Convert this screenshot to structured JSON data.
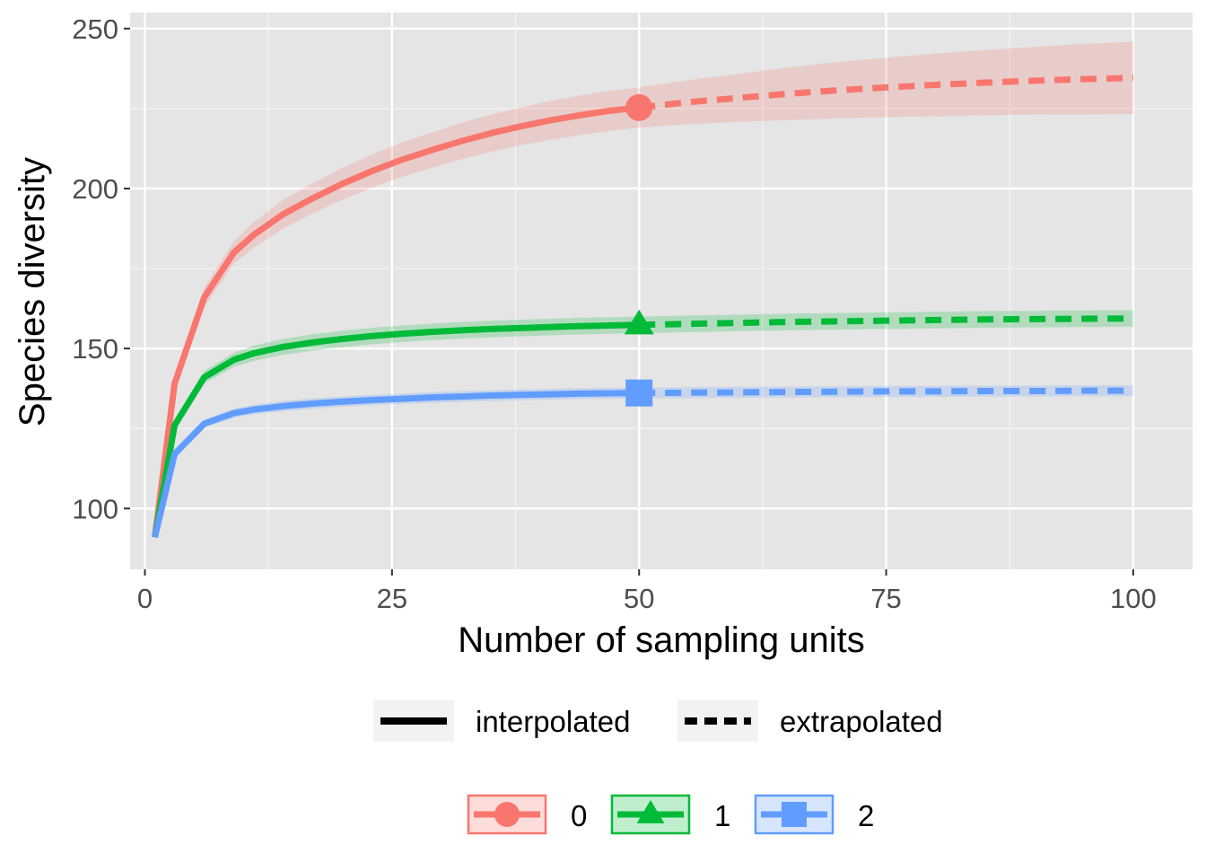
{
  "chart_data": {
    "type": "line",
    "xlabel": "Number of sampling units",
    "ylabel": "Species diversity",
    "xlim": [
      -1.5,
      106
    ],
    "ylim": [
      81,
      255
    ],
    "xticks": [
      0,
      25,
      50,
      75,
      100
    ],
    "yticks": [
      100,
      150,
      200,
      250
    ],
    "grid": true,
    "background": "#e5e5e5",
    "grid_color": "#ffffff",
    "observed_x": 50,
    "x": [
      1,
      3,
      6,
      9,
      11,
      14,
      17,
      20,
      23,
      26,
      29,
      32,
      35,
      38,
      41,
      44,
      47,
      50,
      55,
      60,
      65,
      70,
      75,
      80,
      85,
      90,
      95,
      100
    ],
    "series": [
      {
        "name": "0",
        "color": "#f8766d",
        "shape": "circle",
        "values": [
          91,
          139,
          166,
          180,
          185.5,
          192,
          197,
          201.5,
          205.5,
          209,
          212,
          214.8,
          217.3,
          219.4,
          221.3,
          222.9,
          224.3,
          225.3,
          227,
          228.3,
          229.6,
          230.7,
          231.6,
          232.4,
          233.1,
          233.7,
          234.2,
          234.6
        ],
        "lower": [
          91,
          137,
          163,
          176.5,
          181.5,
          187.5,
          192.3,
          196.5,
          200.3,
          203.6,
          206.5,
          209.1,
          211.5,
          213.5,
          215.2,
          216.7,
          218,
          219,
          220.1,
          220.8,
          221.4,
          221.9,
          222.3,
          222.6,
          222.9,
          223.1,
          223.2,
          223.3
        ],
        "upper": [
          91,
          141,
          169,
          183.5,
          189.5,
          196.5,
          201.7,
          206.5,
          210.7,
          214.4,
          217.5,
          220.5,
          223.1,
          225.3,
          227.4,
          229.1,
          230.6,
          231.6,
          233.9,
          235.8,
          237.8,
          239.5,
          240.9,
          242.2,
          243.3,
          244.3,
          245.2,
          245.9
        ]
      },
      {
        "name": "1",
        "color": "#00ba38",
        "shape": "triangle",
        "values": [
          91,
          126,
          141,
          146.5,
          148.5,
          150.5,
          151.9,
          153,
          153.9,
          154.6,
          155.2,
          155.7,
          156.1,
          156.4,
          156.7,
          157,
          157.2,
          157.4,
          157.7,
          158,
          158.3,
          158.5,
          158.7,
          158.9,
          159.1,
          159.2,
          159.3,
          159.4
        ],
        "lower": [
          91,
          124.5,
          139,
          144.3,
          146.1,
          148,
          149.3,
          150.4,
          151.3,
          152,
          152.6,
          153.1,
          153.5,
          153.8,
          154.1,
          154.4,
          154.6,
          154.8,
          155.1,
          155.4,
          155.7,
          155.9,
          156.1,
          156.3,
          156.5,
          156.6,
          156.7,
          156.8
        ],
        "upper": [
          91,
          127.5,
          143,
          148.7,
          150.9,
          153,
          154.5,
          155.6,
          156.5,
          157.2,
          157.8,
          158.3,
          158.7,
          159,
          159.3,
          159.6,
          159.8,
          160,
          160.3,
          160.6,
          160.9,
          161.1,
          161.3,
          161.5,
          161.7,
          161.8,
          161.9,
          162
        ]
      },
      {
        "name": "2",
        "color": "#619cff",
        "shape": "square",
        "values": [
          91,
          117,
          126.5,
          129.8,
          130.9,
          132,
          132.8,
          133.4,
          133.9,
          134.3,
          134.7,
          135,
          135.3,
          135.5,
          135.7,
          135.9,
          136,
          136.1,
          136.2,
          136.3,
          136.4,
          136.5,
          136.6,
          136.6,
          136.7,
          136.7,
          136.8,
          136.8
        ],
        "lower": [
          91,
          116,
          125.3,
          128.4,
          129.4,
          130.4,
          131.2,
          131.8,
          132.3,
          132.7,
          133,
          133.3,
          133.6,
          133.8,
          134,
          134.2,
          134.3,
          134.4,
          134.5,
          134.6,
          134.7,
          134.8,
          134.9,
          134.9,
          135,
          135,
          135.1,
          135.1
        ],
        "upper": [
          91,
          118,
          127.7,
          131.2,
          132.4,
          133.6,
          134.4,
          135,
          135.5,
          135.9,
          136.4,
          136.7,
          137,
          137.2,
          137.4,
          137.6,
          137.7,
          137.8,
          137.9,
          138,
          138.1,
          138.2,
          138.3,
          138.3,
          138.4,
          138.4,
          138.5,
          138.5
        ]
      }
    ],
    "linetype_legend": [
      "interpolated",
      "extrapolated"
    ],
    "legend_position": "bottom"
  }
}
